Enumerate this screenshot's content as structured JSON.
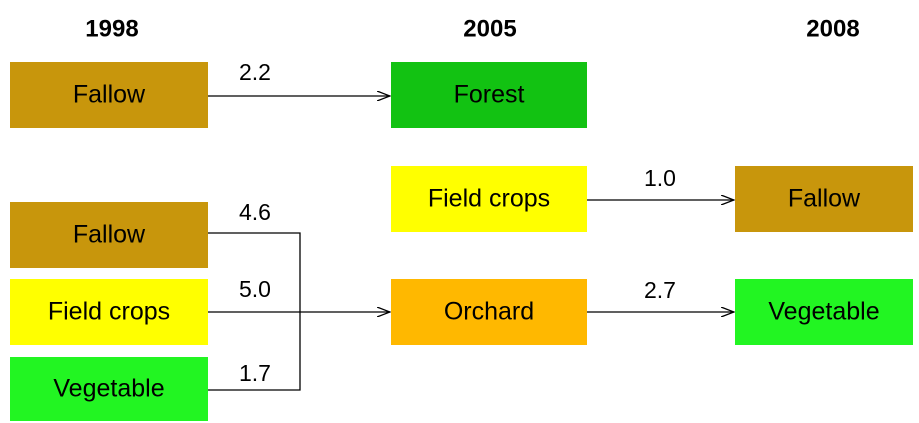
{
  "years": [
    "1998",
    "2005",
    "2008"
  ],
  "nodes": [
    {
      "label": "Fallow"
    },
    {
      "label": "Forest"
    },
    {
      "label": "Field crops"
    },
    {
      "label": "Fallow"
    },
    {
      "label": "Fallow"
    },
    {
      "label": "Field crops"
    },
    {
      "label": "Vegetable"
    },
    {
      "label": "Orchard"
    },
    {
      "label": "Vegetable"
    }
  ],
  "edges": [
    {
      "label": "2.2"
    },
    {
      "label": "1.0"
    },
    {
      "label": "4.6"
    },
    {
      "label": "5.0"
    },
    {
      "label": "1.7"
    },
    {
      "label": "2.7"
    }
  ]
}
